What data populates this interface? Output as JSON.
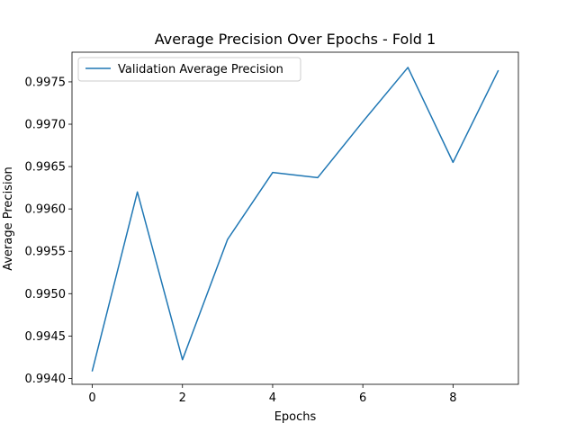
{
  "chart_data": {
    "type": "line",
    "title": "Average Precision Over Epochs - Fold 1",
    "xlabel": "Epochs",
    "ylabel": "Average Precision",
    "xlim": [
      -0.45,
      9.45
    ],
    "ylim": [
      0.99393,
      0.99785
    ],
    "xticks": [
      0,
      2,
      4,
      6,
      8
    ],
    "xtick_labels": [
      "0",
      "2",
      "4",
      "6",
      "8"
    ],
    "yticks": [
      0.994,
      0.9945,
      0.995,
      0.9955,
      0.996,
      0.9965,
      0.997,
      0.9975
    ],
    "ytick_labels": [
      "0.9940",
      "0.9945",
      "0.9950",
      "0.9955",
      "0.9960",
      "0.9965",
      "0.9970",
      "0.9975"
    ],
    "grid": false,
    "legend_position": "upper-left",
    "series": [
      {
        "name": "Validation Average Precision",
        "color": "#1f77b4",
        "x": [
          0,
          1,
          2,
          3,
          4,
          5,
          6,
          7,
          8,
          9
        ],
        "values": [
          0.99409,
          0.9962,
          0.99422,
          0.99564,
          0.99643,
          0.99637,
          0.99703,
          0.99767,
          0.99655,
          0.99763
        ]
      }
    ]
  }
}
